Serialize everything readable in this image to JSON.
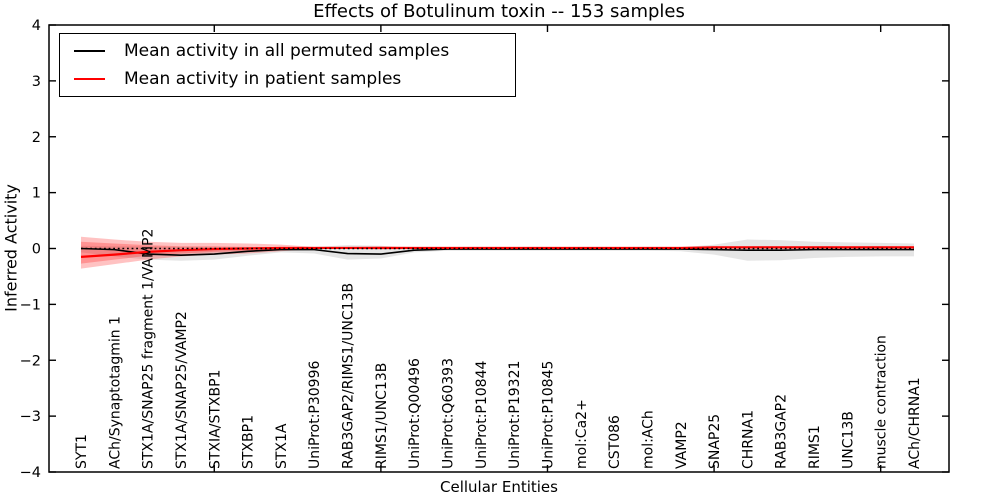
{
  "chart_data": {
    "type": "line",
    "title": "Effects of Botulinum toxin -- 153 samples",
    "xlabel": "Cellular Entities",
    "ylabel": "Inferred Activity",
    "ylim": [
      -4,
      4
    ],
    "yticks": [
      -4,
      -3,
      -2,
      -1,
      0,
      1,
      2,
      3,
      4
    ],
    "ytick_labels": [
      "−4",
      "−3",
      "−2",
      "−1",
      "0",
      "1",
      "2",
      "3",
      "4"
    ],
    "x_major_tick_indices": [
      4,
      9,
      14,
      19,
      24
    ],
    "grid": false,
    "zero_reference_line": {
      "y": 0,
      "style": "dotted",
      "color": "#000000"
    },
    "legend_position": "upper left",
    "background_color": "#ffffff",
    "categories": [
      "SYT1",
      "ACh/Synaptotagmin 1",
      "STX1A/SNAP25 fragment 1/VAMP2",
      "STX1A/SNAP25/VAMP2",
      "STXIA/STXBP1",
      "STXBP1",
      "STX1A",
      "UniProt:P30996",
      "RAB3GAP2/RIMS1/UNC13B",
      "RIMS1/UNC13B",
      "UniProt:Q00496",
      "UniProt:Q60393",
      "UniProt:P10844",
      "UniProt:P19321",
      "UniProt:P10845",
      "mol:Ca2+",
      "CST086",
      "mol:ACh",
      "VAMP2",
      "SNAP25",
      "CHRNA1",
      "RAB3GAP2",
      "RIMS1",
      "UNC13B",
      "muscle contraction",
      "ACh/CHRNA1"
    ],
    "series": [
      {
        "name": "Mean activity in all permuted samples",
        "color": "#000000",
        "band_color": "#000000",
        "band_opacity": 0.1,
        "values": [
          0,
          -0.02,
          -0.1,
          -0.12,
          -0.1,
          -0.05,
          -0.02,
          -0.02,
          -0.09,
          -0.1,
          -0.03,
          -0.01,
          -0.01,
          -0.01,
          -0.01,
          -0.01,
          -0.01,
          -0.01,
          -0.01,
          -0.02,
          -0.03,
          -0.03,
          -0.02,
          -0.02,
          -0.02,
          -0.02
        ],
        "band_upper": [
          0.05,
          0.04,
          0.04,
          0.03,
          0.03,
          0.02,
          0.02,
          0.03,
          0.06,
          0.05,
          0.01,
          0.01,
          0.01,
          0.01,
          0.01,
          0.01,
          0.01,
          0.01,
          0.02,
          0.07,
          0.16,
          0.15,
          0.12,
          0.11,
          0.1,
          0.09
        ],
        "band_lower": [
          -0.07,
          -0.14,
          -0.2,
          -0.22,
          -0.2,
          -0.13,
          -0.07,
          -0.09,
          -0.2,
          -0.18,
          -0.07,
          -0.04,
          -0.04,
          -0.04,
          -0.04,
          -0.04,
          -0.04,
          -0.04,
          -0.05,
          -0.11,
          -0.22,
          -0.21,
          -0.17,
          -0.15,
          -0.14,
          -0.14
        ]
      },
      {
        "name": "Mean activity in patient samples",
        "color": "#ff0000",
        "band_color": "#ff0000",
        "band_opacity": 0.24,
        "values": [
          -0.15,
          -0.11,
          -0.06,
          -0.03,
          -0.01,
          0,
          0.01,
          0.01,
          0.01,
          0.01,
          0.01,
          0.01,
          0.01,
          0.01,
          0.01,
          0.01,
          0.01,
          0.01,
          0.01,
          0.02,
          0.02,
          0.02,
          0.02,
          0.02,
          0.02,
          0.02
        ],
        "band_upper": [
          0.21,
          0.16,
          0.12,
          0.1,
          0.1,
          0.09,
          0.07,
          0.03,
          0.03,
          0.04,
          0.03,
          0.03,
          0.03,
          0.03,
          0.03,
          0.03,
          0.03,
          0.03,
          0.03,
          0.04,
          0.04,
          0.04,
          0.04,
          0.04,
          0.04,
          0.04
        ],
        "band_lower": [
          -0.36,
          -0.28,
          -0.2,
          -0.14,
          -0.11,
          -0.09,
          -0.05,
          -0.01,
          -0.01,
          -0.02,
          -0.01,
          -0.01,
          -0.01,
          -0.01,
          -0.01,
          -0.01,
          -0.01,
          -0.01,
          -0.01,
          0,
          0,
          0,
          0,
          0,
          0,
          0
        ],
        "band2_upper": [
          0.12,
          0.09,
          0.06,
          0.04,
          0.04,
          0.03,
          0.02,
          0.02,
          0.02,
          0.02,
          0.02,
          0.02,
          0.02,
          0.02,
          0.02,
          0.02,
          0.02,
          0.02,
          0.02,
          0.03,
          0.03,
          0.03,
          0.03,
          0.03,
          0.03,
          0.03
        ],
        "band2_lower": [
          -0.27,
          -0.2,
          -0.13,
          -0.09,
          -0.06,
          -0.04,
          -0.02,
          0,
          0,
          -0.01,
          0,
          0,
          0,
          0,
          0,
          0,
          0,
          0,
          0,
          0.01,
          0.01,
          0.01,
          0.01,
          0.01,
          0.01,
          0.01
        ]
      }
    ]
  }
}
